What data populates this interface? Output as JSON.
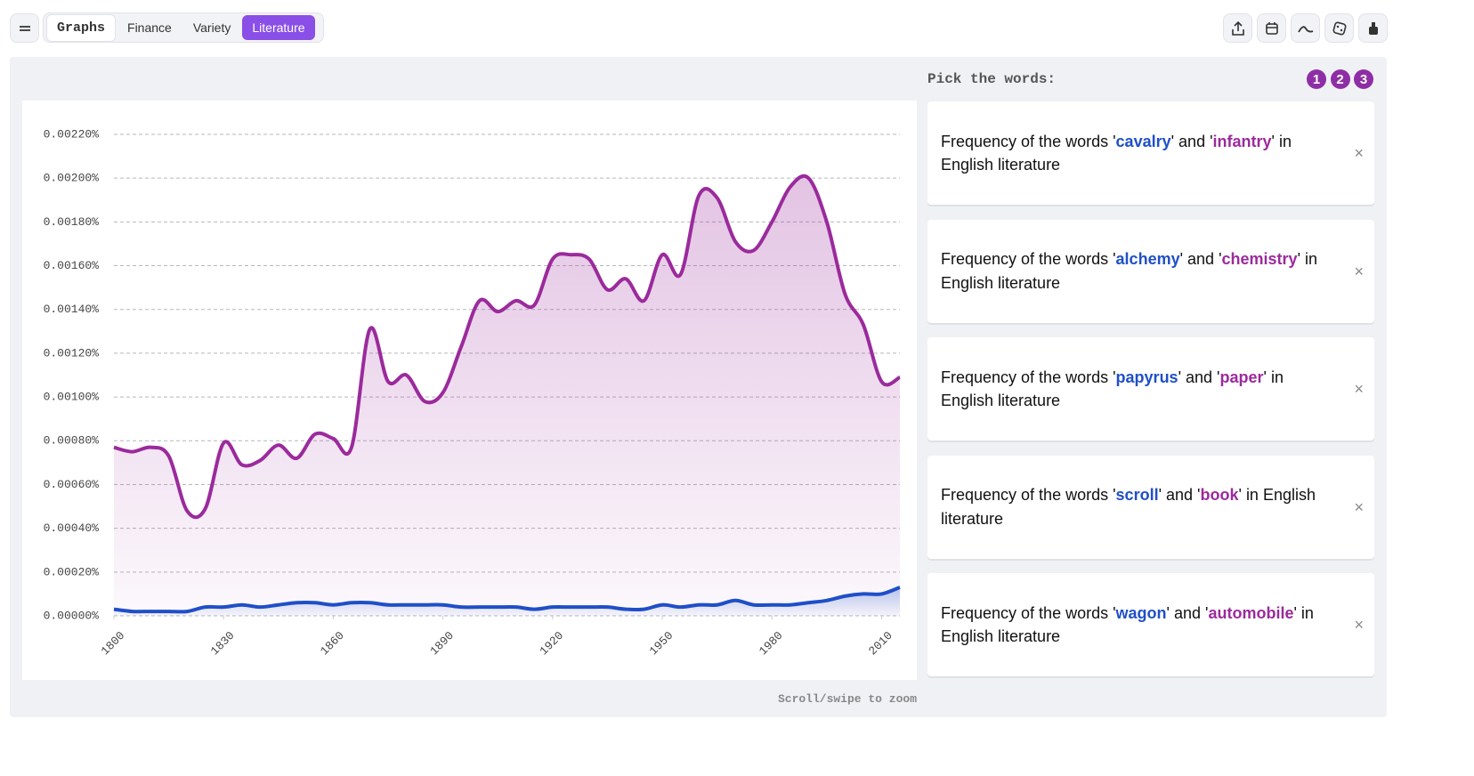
{
  "nav": {
    "tabs": [
      "Graphs",
      "Finance",
      "Variety",
      "Literature"
    ],
    "active": 3
  },
  "chart_data": {
    "type": "line",
    "area": true,
    "x": [
      1800,
      1805,
      1810,
      1815,
      1820,
      1825,
      1830,
      1835,
      1840,
      1845,
      1850,
      1855,
      1860,
      1865,
      1870,
      1875,
      1880,
      1885,
      1890,
      1895,
      1900,
      1905,
      1910,
      1915,
      1920,
      1925,
      1930,
      1935,
      1940,
      1945,
      1950,
      1955,
      1960,
      1965,
      1970,
      1975,
      1980,
      1985,
      1990,
      1995,
      2000,
      2005,
      2010,
      2015
    ],
    "series": [
      {
        "name": "cavalry",
        "color": "#1f4fc8",
        "values": [
          3e-05,
          2e-05,
          2e-05,
          2e-05,
          2e-05,
          4e-05,
          4e-05,
          5e-05,
          4e-05,
          5e-05,
          6e-05,
          6e-05,
          5e-05,
          6e-05,
          6e-05,
          5e-05,
          5e-05,
          5e-05,
          5e-05,
          4e-05,
          4e-05,
          4e-05,
          4e-05,
          3e-05,
          4e-05,
          4e-05,
          4e-05,
          4e-05,
          3e-05,
          3e-05,
          5e-05,
          4e-05,
          5e-05,
          5e-05,
          7e-05,
          5e-05,
          5e-05,
          5e-05,
          6e-05,
          7e-05,
          9e-05,
          0.0001,
          0.0001,
          0.00013
        ]
      },
      {
        "name": "infantry",
        "color": "#9b2a9c",
        "values": [
          0.00077,
          0.00075,
          0.00077,
          0.00073,
          0.00048,
          0.00049,
          0.00079,
          0.00069,
          0.00071,
          0.00078,
          0.00072,
          0.00083,
          0.00081,
          0.00077,
          0.00131,
          0.00107,
          0.0011,
          0.00098,
          0.00102,
          0.00123,
          0.00144,
          0.00139,
          0.00144,
          0.00142,
          0.00163,
          0.00165,
          0.00163,
          0.00149,
          0.00154,
          0.00144,
          0.00165,
          0.00156,
          0.00192,
          0.00191,
          0.00171,
          0.00167,
          0.0018,
          0.00196,
          0.002,
          0.0018,
          0.00147,
          0.00133,
          0.00107,
          0.00109
        ]
      }
    ],
    "xlim": [
      1800,
      2015
    ],
    "xticks": [
      1800,
      1830,
      1860,
      1890,
      1920,
      1950,
      1980,
      2010
    ],
    "ylim": [
      0,
      0.0022
    ],
    "yticks": [
      {
        "value": 0,
        "label": "0.00000%"
      },
      {
        "value": 0.0002,
        "label": "0.00020%"
      },
      {
        "value": 0.0004,
        "label": "0.00040%"
      },
      {
        "value": 0.0006,
        "label": "0.00060%"
      },
      {
        "value": 0.0008,
        "label": "0.00080%"
      },
      {
        "value": 0.001,
        "label": "0.00100%"
      },
      {
        "value": 0.0012,
        "label": "0.00120%"
      },
      {
        "value": 0.0014,
        "label": "0.00140%"
      },
      {
        "value": 0.0016,
        "label": "0.00160%"
      },
      {
        "value": 0.0018,
        "label": "0.00180%"
      },
      {
        "value": 0.002,
        "label": "0.00200%"
      },
      {
        "value": 0.0022,
        "label": "0.00220%"
      }
    ],
    "grid": true
  },
  "hint": "Scroll/swipe to zoom",
  "panel": {
    "heading": "Pick the words:",
    "steps": [
      1,
      2,
      3
    ],
    "close": "×",
    "cards": [
      {
        "prefix": "Frequency of the words '",
        "mid": "' and '",
        "suffix": "' in English literature"
      },
      {
        "prefix": "Frequency of the words '",
        "word1": "alchemy",
        "mid": "' and '",
        "word2": "chemistry",
        "suffix": "' in English literature"
      },
      {
        "prefix": "Frequency of the words '",
        "word1": "papyrus",
        "mid": "' and '",
        "word2": "paper",
        "suffix": "' in English literature"
      },
      {
        "prefix": "Frequency of the words '",
        "word1": "scroll",
        "mid": "' and '",
        "word2": "book",
        "suffix": "' in English literature"
      },
      {
        "prefix": "Frequency of the words '",
        "word1": "wagon",
        "mid": "' and '",
        "word2": "automobile",
        "suffix": "' in English literature"
      }
    ]
  }
}
